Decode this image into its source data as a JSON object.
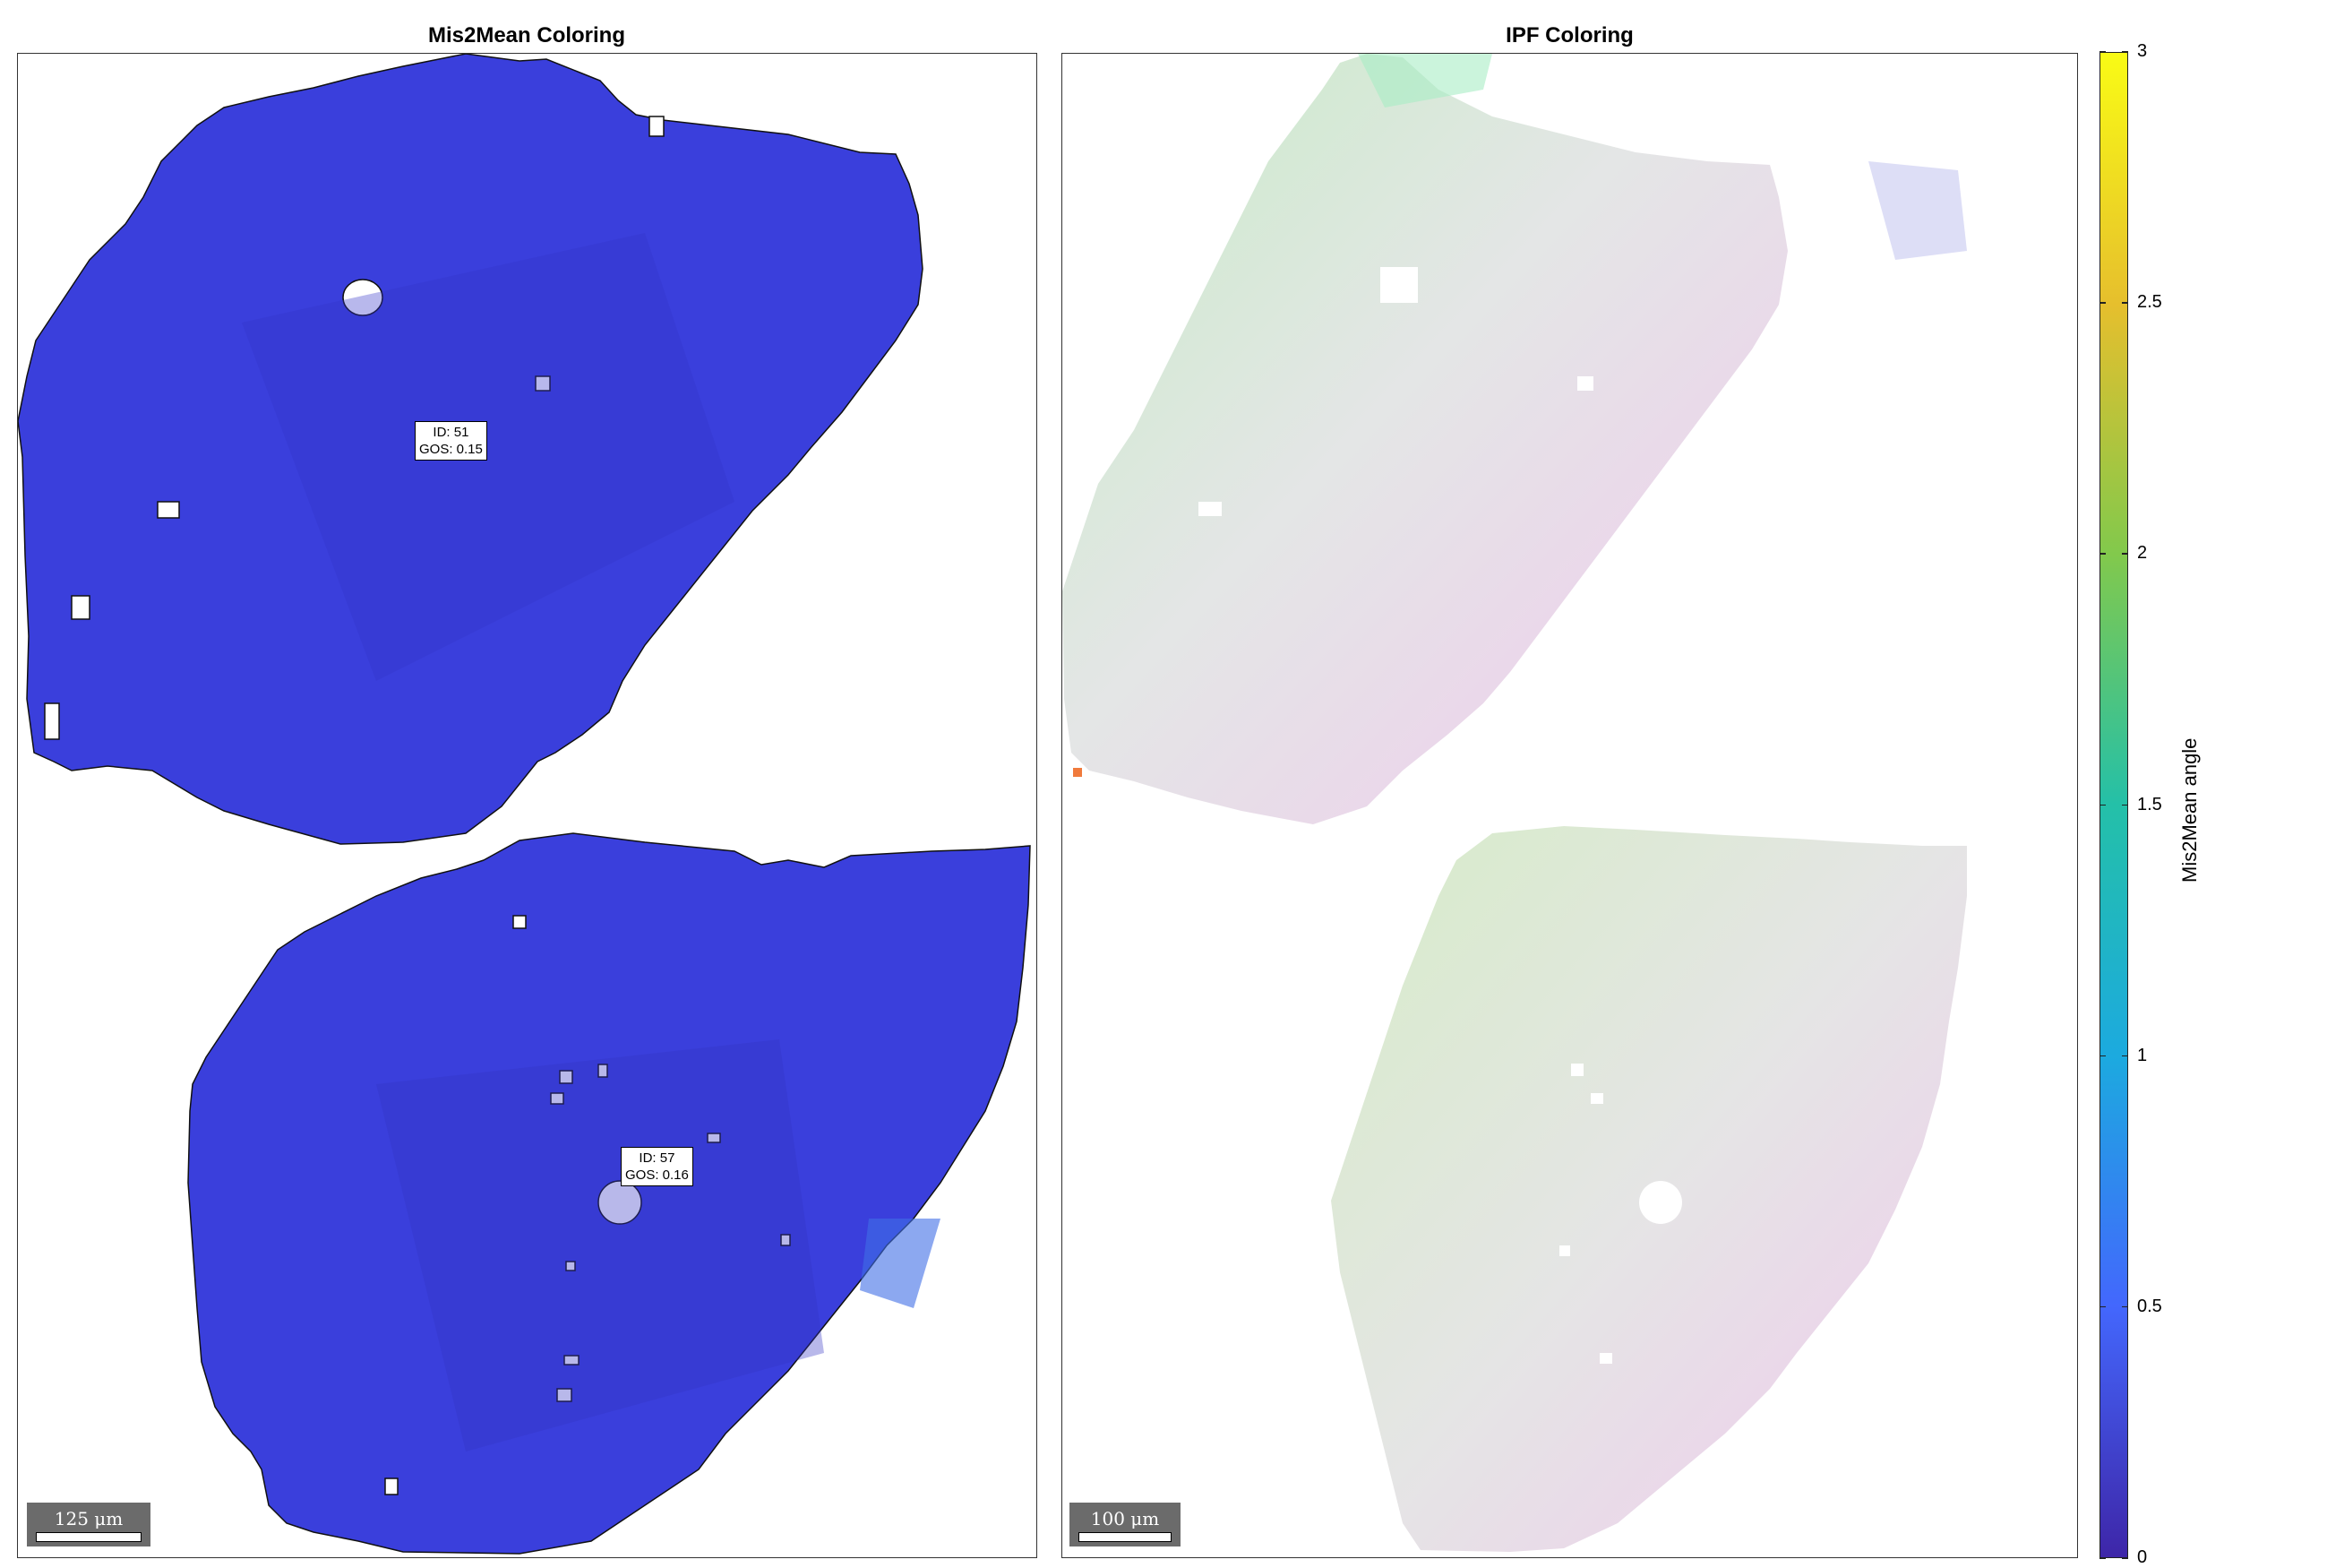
{
  "panels": {
    "left": {
      "title": "Mis2Mean Coloring",
      "scalebar_label": "125 μm",
      "fill_color": "#3a3fdc",
      "grains": [
        {
          "id_text": "ID: 51",
          "gos_text": "GOS: 0.15"
        },
        {
          "id_text": "ID: 57",
          "gos_text": "GOS: 0.16"
        }
      ]
    },
    "right": {
      "title": "IPF Coloring",
      "scalebar_label": "100 μm",
      "fill_color": "#e6e6e6"
    }
  },
  "chart_data": {
    "type": "heatmap",
    "colorbar": {
      "label": "Mis2Mean angle",
      "range": [
        0,
        3
      ],
      "ticks": [
        0,
        0.5,
        1,
        1.5,
        2,
        2.5,
        3
      ],
      "colormap": [
        "#3e26a8",
        "#4367fd",
        "#1caadf",
        "#24c0a8",
        "#82c94c",
        "#e6bf2d",
        "#f9fb15"
      ]
    }
  }
}
